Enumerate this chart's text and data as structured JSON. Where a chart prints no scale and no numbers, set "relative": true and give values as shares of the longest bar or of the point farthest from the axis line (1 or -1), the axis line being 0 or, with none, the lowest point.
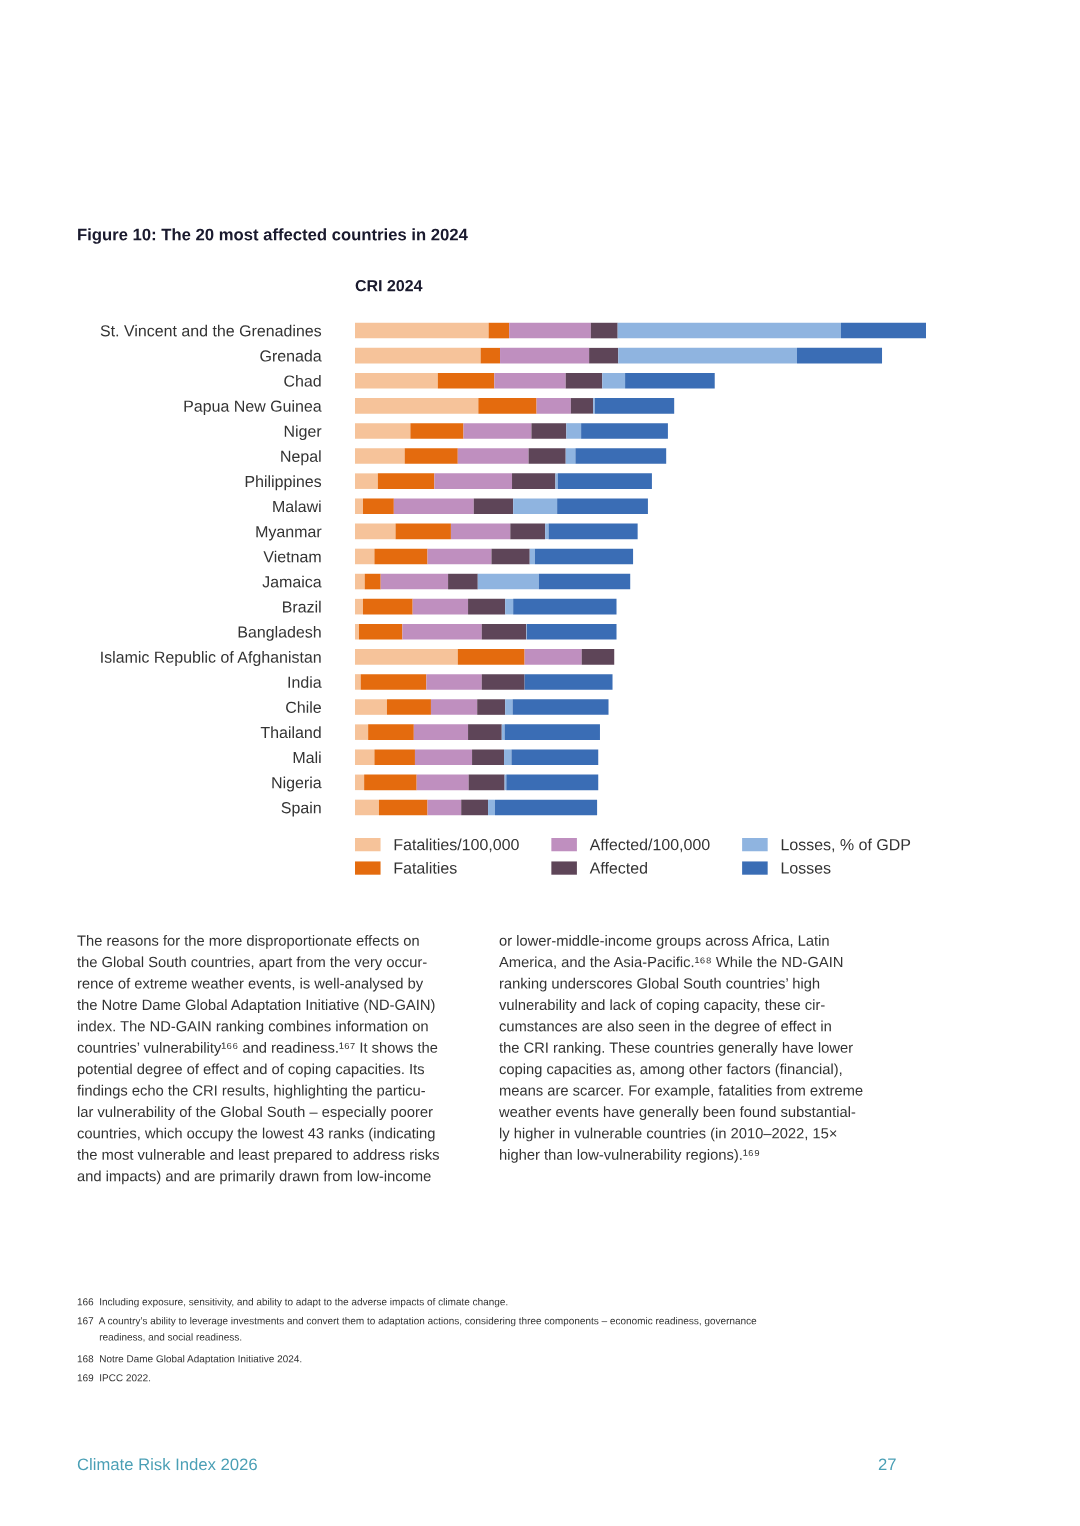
{
  "chart_data": {
    "type": "bar",
    "orientation": "horizontal",
    "stacked": true,
    "relative": true,
    "legend": "bottom",
    "grid": false,
    "title": "Figure 10: The 20 most affected countries in 2024",
    "subtitle": "CRI 2024",
    "categories": [
      "St. Vincent and the Grenadines",
      "Grenada",
      "Chad",
      "Papua New Guinea",
      "Niger",
      "Nepal",
      "Philippines",
      "Malawi",
      "Myanmar",
      "Vietnam",
      "Jamaica",
      "Brazil",
      "Bangladesh",
      "Islamic Republic of Afghanistan",
      "India",
      "Chile",
      "Thailand",
      "Mali",
      "Nigeria",
      "Spain"
    ],
    "series": [
      {
        "name": "Fatalities/100,000",
        "color": "#f6c39a",
        "values": [
          0.234,
          0.22,
          0.145,
          0.216,
          0.097,
          0.087,
          0.04,
          0.014,
          0.071,
          0.034,
          0.017,
          0.014,
          0.007,
          0.18,
          0.01,
          0.056,
          0.023,
          0.034,
          0.016,
          0.042
        ]
      },
      {
        "name": "Fatalities",
        "color": "#e46b0e",
        "values": [
          0.036,
          0.034,
          0.099,
          0.102,
          0.093,
          0.093,
          0.099,
          0.054,
          0.097,
          0.093,
          0.028,
          0.087,
          0.076,
          0.117,
          0.115,
          0.077,
          0.08,
          0.071,
          0.092,
          0.085
        ]
      },
      {
        "name": "Affected/100,000",
        "color": "#bf8fbf",
        "values": [
          0.143,
          0.156,
          0.125,
          0.06,
          0.119,
          0.124,
          0.136,
          0.14,
          0.104,
          0.112,
          0.118,
          0.097,
          0.139,
          0.1,
          0.097,
          0.081,
          0.095,
          0.1,
          0.091,
          0.059
        ]
      },
      {
        "name": "Affected",
        "color": "#5e4558",
        "values": [
          0.047,
          0.051,
          0.064,
          0.039,
          0.061,
          0.065,
          0.076,
          0.069,
          0.061,
          0.067,
          0.052,
          0.065,
          0.078,
          0.057,
          0.075,
          0.049,
          0.059,
          0.056,
          0.063,
          0.047
        ]
      },
      {
        "name": "Losses, % of GDP",
        "color": "#8fb4e0",
        "values": [
          0.391,
          0.313,
          0.04,
          0.003,
          0.026,
          0.017,
          0.004,
          0.077,
          0.006,
          0.009,
          0.107,
          0.014,
          0.001,
          0,
          0,
          0.013,
          0.005,
          0.013,
          0.003,
          0.012
        ]
      },
      {
        "name": "Losses",
        "color": "#3a6db5",
        "values": [
          0.149,
          0.149,
          0.157,
          0.139,
          0.152,
          0.159,
          0.165,
          0.159,
          0.156,
          0.172,
          0.16,
          0.181,
          0.157,
          0,
          0.154,
          0.168,
          0.167,
          0.152,
          0.161,
          0.179
        ]
      }
    ],
    "annotations": [
      "The reasons for the more disproportionate effects on\nthe Global South countries, apart from the very occur-\nrence of extreme weather events, is well-analysed by\nthe Notre Dame Global Adaptation Initiative (ND-GAIN)\nindex. The ND-GAIN ranking combines information on\ncountries’ vulnerability¹⁶⁶ and readiness.¹⁶⁷ It shows the\npotential degree of effect and of coping capacities. Its\nfindings echo the CRI results, highlighting the particu-\nlar vulnerability of the Global South – especially poorer\ncountries, which occupy the lowest 43 ranks (indicating\nthe most vulnerable and least prepared to address risks\nand impacts) and are primarily drawn from low-income",
      "or lower-middle-income groups across Africa, Latin\nAmerica, and the Asia-Pacific.¹⁶⁸ While the ND-GAIN\nranking underscores Global South countries’ high\nvulnerability and lack of coping capacity, these cir-\ncumstances are also seen in the degree of effect in\nthe CRI ranking. These countries generally have lower\ncoping capacities as, among other factors (financial),\nmeans are scarcer. For example, fatalities from extreme\nweather events have generally been found substantial-\nly higher in vulnerable countries (in 2010–2022, 15×\nhigher than low-vulnerability regions).¹⁶⁹",
      "166  Including exposure, sensitivity, and ability to adapt to the adverse impacts of climate change.",
      "167  A country’s ability to leverage investments and convert them to adaptation actions, considering three components – economic readiness, governance\n        readiness, and social readiness.",
      "168  Notre Dame Global Adaptation Initiative 2024.",
      "169  IPCC 2022.",
      "Climate Risk Index 2026",
      "27"
    ]
  }
}
